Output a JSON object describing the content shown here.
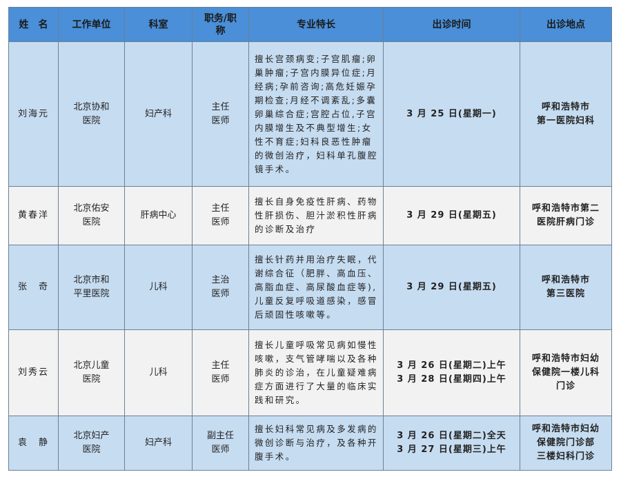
{
  "headers": [
    "姓　名",
    "工作单位",
    "科室",
    "职务/职\n称",
    "专业特长",
    "出诊时间",
    "出诊地点"
  ],
  "rows": [
    {
      "name": "刘海元",
      "unit": "北京协和\n医院",
      "dept": "妇产科",
      "title": "主任\n医师",
      "specialty": "擅长宫颈病变;子宫肌瘤;卵\n巢肿瘤;子宫内膜异位症;月\n经病;孕前咨询;高危妊娠孕\n期检查;月经不调紊乱;多囊\n卵巢综合症;宫腔占位,子宫\n内膜增生及不典型增生;女\n性不育症;妇科良恶性肿瘤\n的微创治疗，妇科单孔腹腔\n镜手术。",
      "time": "3 月 25 日(星期一)",
      "place": "呼和浩特市\n第一医院妇科"
    },
    {
      "name": "黄春洋",
      "unit": "北京佑安\n医院",
      "dept": "肝病中心",
      "title": "主任\n医师",
      "specialty": "擅长自身免疫性肝病、药物\n性肝损伤、胆汁淤积性肝病\n的诊断及治疗",
      "time": "3 月 29 日(星期五)",
      "place": "呼和浩特市第二\n医院肝病门诊"
    },
    {
      "name": "张　奇",
      "unit": "北京市和\n平里医院",
      "dept": "儿科",
      "title": "主治\n医师",
      "specialty": "擅长针药并用治疗失眠，代\n谢综合征（肥胖、高血压、\n高脂血症、高尿酸血症等),\n儿童反复呼吸道感染，感冒\n后顽固性咳嗽等。",
      "time": "3 月 29 日(星期五)",
      "place": "呼和浩特市\n第三医院"
    },
    {
      "name": "刘秀云",
      "unit": "北京儿童\n医院",
      "dept": "儿科",
      "title": "主任\n医师",
      "specialty": "擅长儿童呼吸常见病如慢性\n咳嗽，支气管哮喘以及各种\n肺炎的诊治，在儿童疑难病\n症方面进行了大量的临床实\n践和研究。",
      "time": "3 月 26 日(星期二)上午\n3 月 28 日(星期四)上午",
      "place": "呼和浩特市妇幼\n保健院一楼儿科\n门诊"
    },
    {
      "name": "袁　静",
      "unit": "北京妇产\n医院",
      "dept": "妇产科",
      "title": "副主任\n医师",
      "specialty": "擅长妇科常见病及多发病的\n微创诊断与治疗，及各种开\n腹手术。",
      "time": "3 月 26 日(星期二)全天\n3 月 27 日(星期三)上午",
      "place": "呼和浩特市妇幼\n保健院门诊部\n三楼妇科门诊"
    }
  ]
}
